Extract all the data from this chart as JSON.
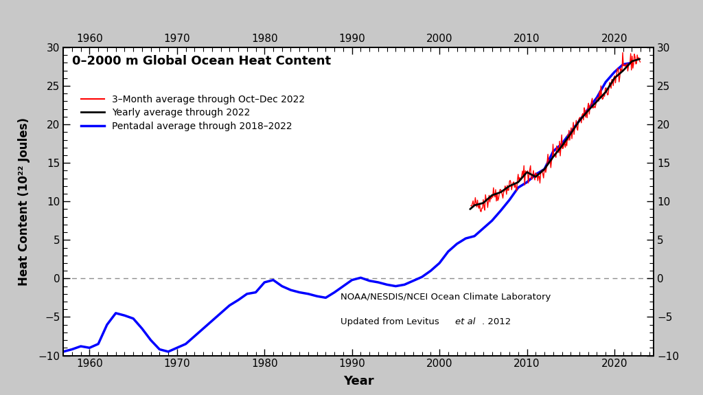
{
  "title": "0–2000 m Global Ocean Heat Content",
  "xlabel": "Year",
  "ylabel": "Heat Content (10²² Joules)",
  "ylim": [
    -10,
    30
  ],
  "xlim": [
    1957,
    2024.5
  ],
  "yticks": [
    -10,
    -5,
    0,
    5,
    10,
    15,
    20,
    25,
    30
  ],
  "xticks": [
    1960,
    1970,
    1980,
    1990,
    2000,
    2010,
    2020
  ],
  "legend_labels": [
    "3–Month average through Oct–Dec 2022",
    "Yearly average through 2022",
    "Pentadal average through 2018–2022"
  ],
  "legend_colors": [
    "red",
    "black",
    "blue"
  ],
  "annotation_line1": "NOAA/NESDIS/NCEI Ocean Climate Laboratory",
  "annotation_line2_pre": "Updated from Levitus ",
  "annotation_line2_italic": "et al",
  "annotation_line2_post": ". 2012",
  "fig_bg_color": "#c8c8c8",
  "plot_bg_color": "white",
  "pentadal_x": [
    1957,
    1958,
    1959,
    1960,
    1961,
    1962,
    1963,
    1964,
    1965,
    1966,
    1967,
    1968,
    1969,
    1970,
    1971,
    1972,
    1973,
    1974,
    1975,
    1976,
    1977,
    1978,
    1979,
    1980,
    1981,
    1982,
    1983,
    1984,
    1985,
    1986,
    1987,
    1988,
    1989,
    1990,
    1991,
    1992,
    1993,
    1994,
    1995,
    1996,
    1997,
    1998,
    1999,
    2000,
    2001,
    2002,
    2003,
    2004,
    2005,
    2006,
    2007,
    2008,
    2009,
    2010,
    2011,
    2012,
    2013,
    2014,
    2015,
    2016,
    2017,
    2018,
    2019,
    2020,
    2021,
    2022
  ],
  "pentadal_y": [
    -9.5,
    -9.2,
    -8.8,
    -9.0,
    -8.5,
    -6.0,
    -4.5,
    -4.8,
    -5.2,
    -6.5,
    -8.0,
    -9.2,
    -9.5,
    -9.0,
    -8.5,
    -7.5,
    -6.5,
    -5.5,
    -4.5,
    -3.5,
    -2.8,
    -2.0,
    -1.8,
    -0.5,
    -0.2,
    -1.0,
    -1.5,
    -1.8,
    -2.0,
    -2.3,
    -2.5,
    -1.8,
    -1.0,
    -0.2,
    0.1,
    -0.3,
    -0.5,
    -0.8,
    -1.0,
    -0.8,
    -0.3,
    0.2,
    1.0,
    2.0,
    3.5,
    4.5,
    5.2,
    5.5,
    6.5,
    7.5,
    8.8,
    10.2,
    11.8,
    12.5,
    13.5,
    14.2,
    16.5,
    17.5,
    19.0,
    20.5,
    22.0,
    23.5,
    25.5,
    26.8,
    27.8,
    28.0
  ],
  "yearly_x": [
    2003.5,
    2004,
    2005,
    2006,
    2007,
    2008,
    2009,
    2010,
    2011,
    2012,
    2013,
    2014,
    2015,
    2016,
    2017,
    2018,
    2019,
    2020,
    2021,
    2022,
    2022.9
  ],
  "yearly_y": [
    9.0,
    9.5,
    9.8,
    10.8,
    11.2,
    12.0,
    12.5,
    13.8,
    13.2,
    14.2,
    15.8,
    17.2,
    18.8,
    20.5,
    21.8,
    23.0,
    24.2,
    26.0,
    27.0,
    28.2,
    28.5
  ],
  "monthly_seed": 42
}
